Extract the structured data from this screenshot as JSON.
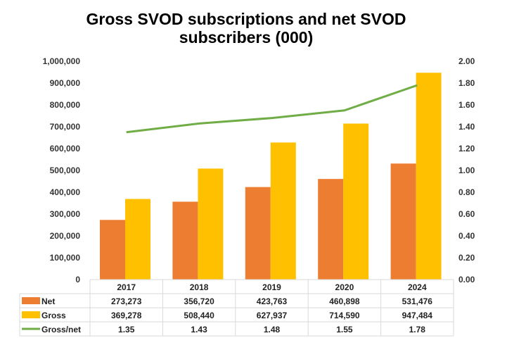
{
  "chart_data": {
    "type": "bar",
    "title": "Gross SVOD subscriptions and net SVOD subscribers (000)",
    "title_lines": [
      "Gross SVOD subscriptions and net SVOD",
      "subscribers (000)"
    ],
    "categories": [
      "2017",
      "2018",
      "2019",
      "2020",
      "2024"
    ],
    "series": [
      {
        "name": "Net",
        "type": "bar",
        "axis": "left",
        "color": "#ED7D31",
        "values": [
          273273,
          356720,
          423763,
          460898,
          531476
        ],
        "labels": [
          "273,273",
          "356,720",
          "423,763",
          "460,898",
          "531,476"
        ]
      },
      {
        "name": "Gross",
        "type": "bar",
        "axis": "left",
        "color": "#FFC000",
        "values": [
          369278,
          508440,
          627937,
          714590,
          947484
        ],
        "labels": [
          "369,278",
          "508,440",
          "627,937",
          "714,590",
          "947,484"
        ]
      },
      {
        "name": "Gross/net",
        "type": "line",
        "axis": "right",
        "color": "#70AD47",
        "values": [
          1.35,
          1.43,
          1.48,
          1.55,
          1.78
        ],
        "labels": [
          "1.35",
          "1.43",
          "1.48",
          "1.55",
          "1.78"
        ]
      }
    ],
    "ylim": [
      0,
      1000000
    ],
    "y_ticks": [
      "0",
      "100,000",
      "200,000",
      "300,000",
      "400,000",
      "500,000",
      "600,000",
      "700,000",
      "800,000",
      "900,000",
      "1,000,000"
    ],
    "y2lim": [
      0,
      2
    ],
    "y2_ticks": [
      "0.00",
      "0.20",
      "0.40",
      "0.60",
      "0.80",
      "1.00",
      "1.20",
      "1.40",
      "1.60",
      "1.80",
      "2.00"
    ],
    "grid": false,
    "legend": "data-table"
  }
}
